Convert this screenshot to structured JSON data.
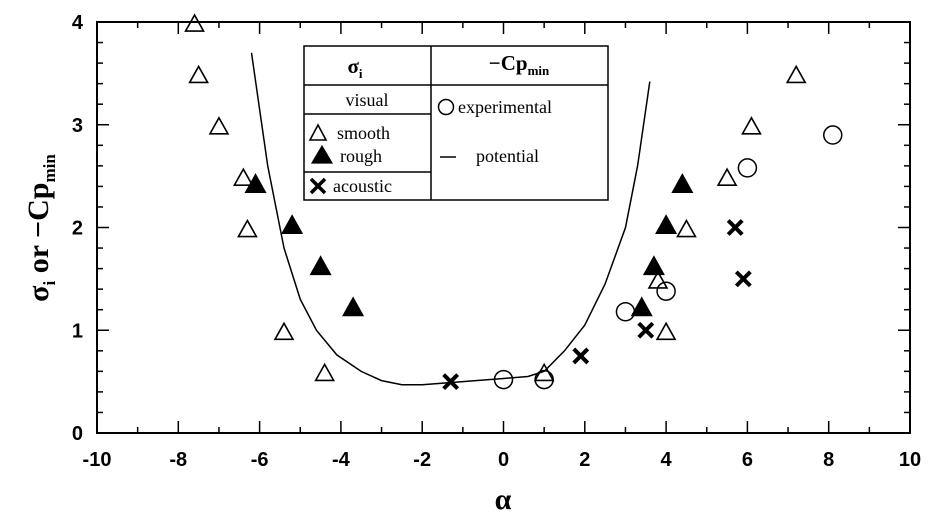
{
  "chart_data": {
    "type": "scatter",
    "xlabel": "α",
    "ylabel_main": "σ",
    "ylabel_sub": "i",
    "ylabel_mid": " or −Cp",
    "ylabel_sub2": "min",
    "xlim": [
      -10,
      10
    ],
    "ylim": [
      0,
      4
    ],
    "x_ticks": [
      -10,
      -8,
      -6,
      -4,
      -2,
      0,
      2,
      4,
      6,
      8,
      10
    ],
    "x_tick_labels": [
      "-10",
      "-8",
      "-6",
      "-4",
      "-2",
      "0",
      "2",
      "4",
      "6",
      "8",
      "10"
    ],
    "y_ticks": [
      0,
      1,
      2,
      3,
      4
    ],
    "y_tick_labels": [
      "0",
      "1",
      "2",
      "3",
      "4"
    ],
    "grid": false,
    "legend": {
      "placement": "top-center",
      "col1_header": "σ",
      "col1_header_sub": "i",
      "col2_header": "−Cp",
      "col2_header_sub": "min",
      "visual_label": "visual",
      "smooth_label": "smooth",
      "rough_label": "rough",
      "acoustic_label": "acoustic",
      "experimental_label": "experimental",
      "potential_label": "potential"
    },
    "series": [
      {
        "name": "smooth",
        "marker": "open-triangle",
        "points": [
          [
            -7.6,
            3.98
          ],
          [
            -7.5,
            3.48
          ],
          [
            -7.0,
            2.98
          ],
          [
            -6.4,
            2.48
          ],
          [
            -6.3,
            1.98
          ],
          [
            -5.4,
            0.98
          ],
          [
            -4.4,
            0.58
          ],
          [
            1.0,
            0.58
          ],
          [
            3.8,
            1.48
          ],
          [
            4.0,
            0.98
          ],
          [
            4.5,
            1.98
          ],
          [
            5.5,
            2.48
          ],
          [
            6.1,
            2.98
          ],
          [
            7.2,
            3.48
          ]
        ]
      },
      {
        "name": "rough",
        "marker": "filled-triangle",
        "points": [
          [
            -6.1,
            2.42
          ],
          [
            -5.2,
            2.02
          ],
          [
            -4.5,
            1.62
          ],
          [
            -3.7,
            1.22
          ],
          [
            3.4,
            1.22
          ],
          [
            3.7,
            1.62
          ],
          [
            4.0,
            2.02
          ],
          [
            4.4,
            2.42
          ]
        ]
      },
      {
        "name": "acoustic",
        "marker": "x",
        "points": [
          [
            -1.3,
            0.5
          ],
          [
            1.9,
            0.75
          ],
          [
            3.5,
            1.0
          ],
          [
            5.7,
            2.0
          ],
          [
            5.9,
            1.5
          ]
        ]
      },
      {
        "name": "experimental",
        "marker": "open-circle",
        "points": [
          [
            0.0,
            0.52
          ],
          [
            1.0,
            0.52
          ],
          [
            3.0,
            1.18
          ],
          [
            4.0,
            1.38
          ],
          [
            6.0,
            2.58
          ],
          [
            8.1,
            2.9
          ]
        ]
      },
      {
        "name": "potential",
        "marker": "line",
        "points": [
          [
            -6.2,
            3.7
          ],
          [
            -5.8,
            2.6
          ],
          [
            -5.4,
            1.8
          ],
          [
            -5.0,
            1.3
          ],
          [
            -4.6,
            1.0
          ],
          [
            -4.1,
            0.76
          ],
          [
            -3.5,
            0.6
          ],
          [
            -3.0,
            0.51
          ],
          [
            -2.5,
            0.47
          ],
          [
            -2.0,
            0.47
          ],
          [
            -1.0,
            0.5
          ],
          [
            0.0,
            0.53
          ],
          [
            0.6,
            0.55
          ],
          [
            1.0,
            0.6
          ],
          [
            1.5,
            0.8
          ],
          [
            2.0,
            1.05
          ],
          [
            2.5,
            1.45
          ],
          [
            3.0,
            2.0
          ],
          [
            3.3,
            2.6
          ],
          [
            3.6,
            3.42
          ]
        ]
      }
    ]
  }
}
